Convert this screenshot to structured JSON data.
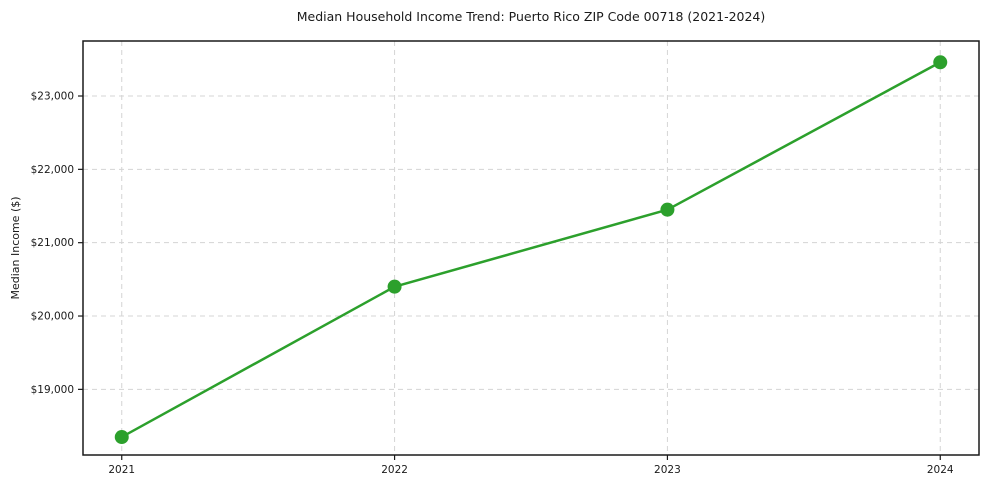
{
  "chart_data": {
    "type": "line",
    "title": "Median Household Income Trend: Puerto Rico ZIP Code 00718 (2021-2024)",
    "xlabel": "",
    "ylabel": "Median Income ($)",
    "x": [
      2021,
      2022,
      2023,
      2024
    ],
    "series": [
      {
        "name": "Median Household Income",
        "values": [
          18350,
          20400,
          21450,
          23460
        ],
        "color": "#2ca02c"
      }
    ],
    "xticks": [
      {
        "value": 2021,
        "label": "2021"
      },
      {
        "value": 2022,
        "label": "2022"
      },
      {
        "value": 2023,
        "label": "2023"
      },
      {
        "value": 2024,
        "label": "2024"
      }
    ],
    "yticks": [
      {
        "value": 19000,
        "label": "$19,000"
      },
      {
        "value": 20000,
        "label": "$20,000"
      },
      {
        "value": 21000,
        "label": "$21,000"
      },
      {
        "value": 22000,
        "label": "$22,000"
      },
      {
        "value": 23000,
        "label": "$23,000"
      }
    ],
    "xlim": [
      2020.858,
      2024.142
    ],
    "ylim": [
      18105,
      23750
    ],
    "grid": true,
    "grid_style": "dashed",
    "legend": "none",
    "marker": "circle",
    "marker_size": 7,
    "line_width": 2.5,
    "background_color": "#ffffff",
    "grid_color": "#d4d4d4",
    "spine_color": "#1a1a1a",
    "tick_color": "#1a1a1a",
    "text_color": "#1a1a1a"
  }
}
